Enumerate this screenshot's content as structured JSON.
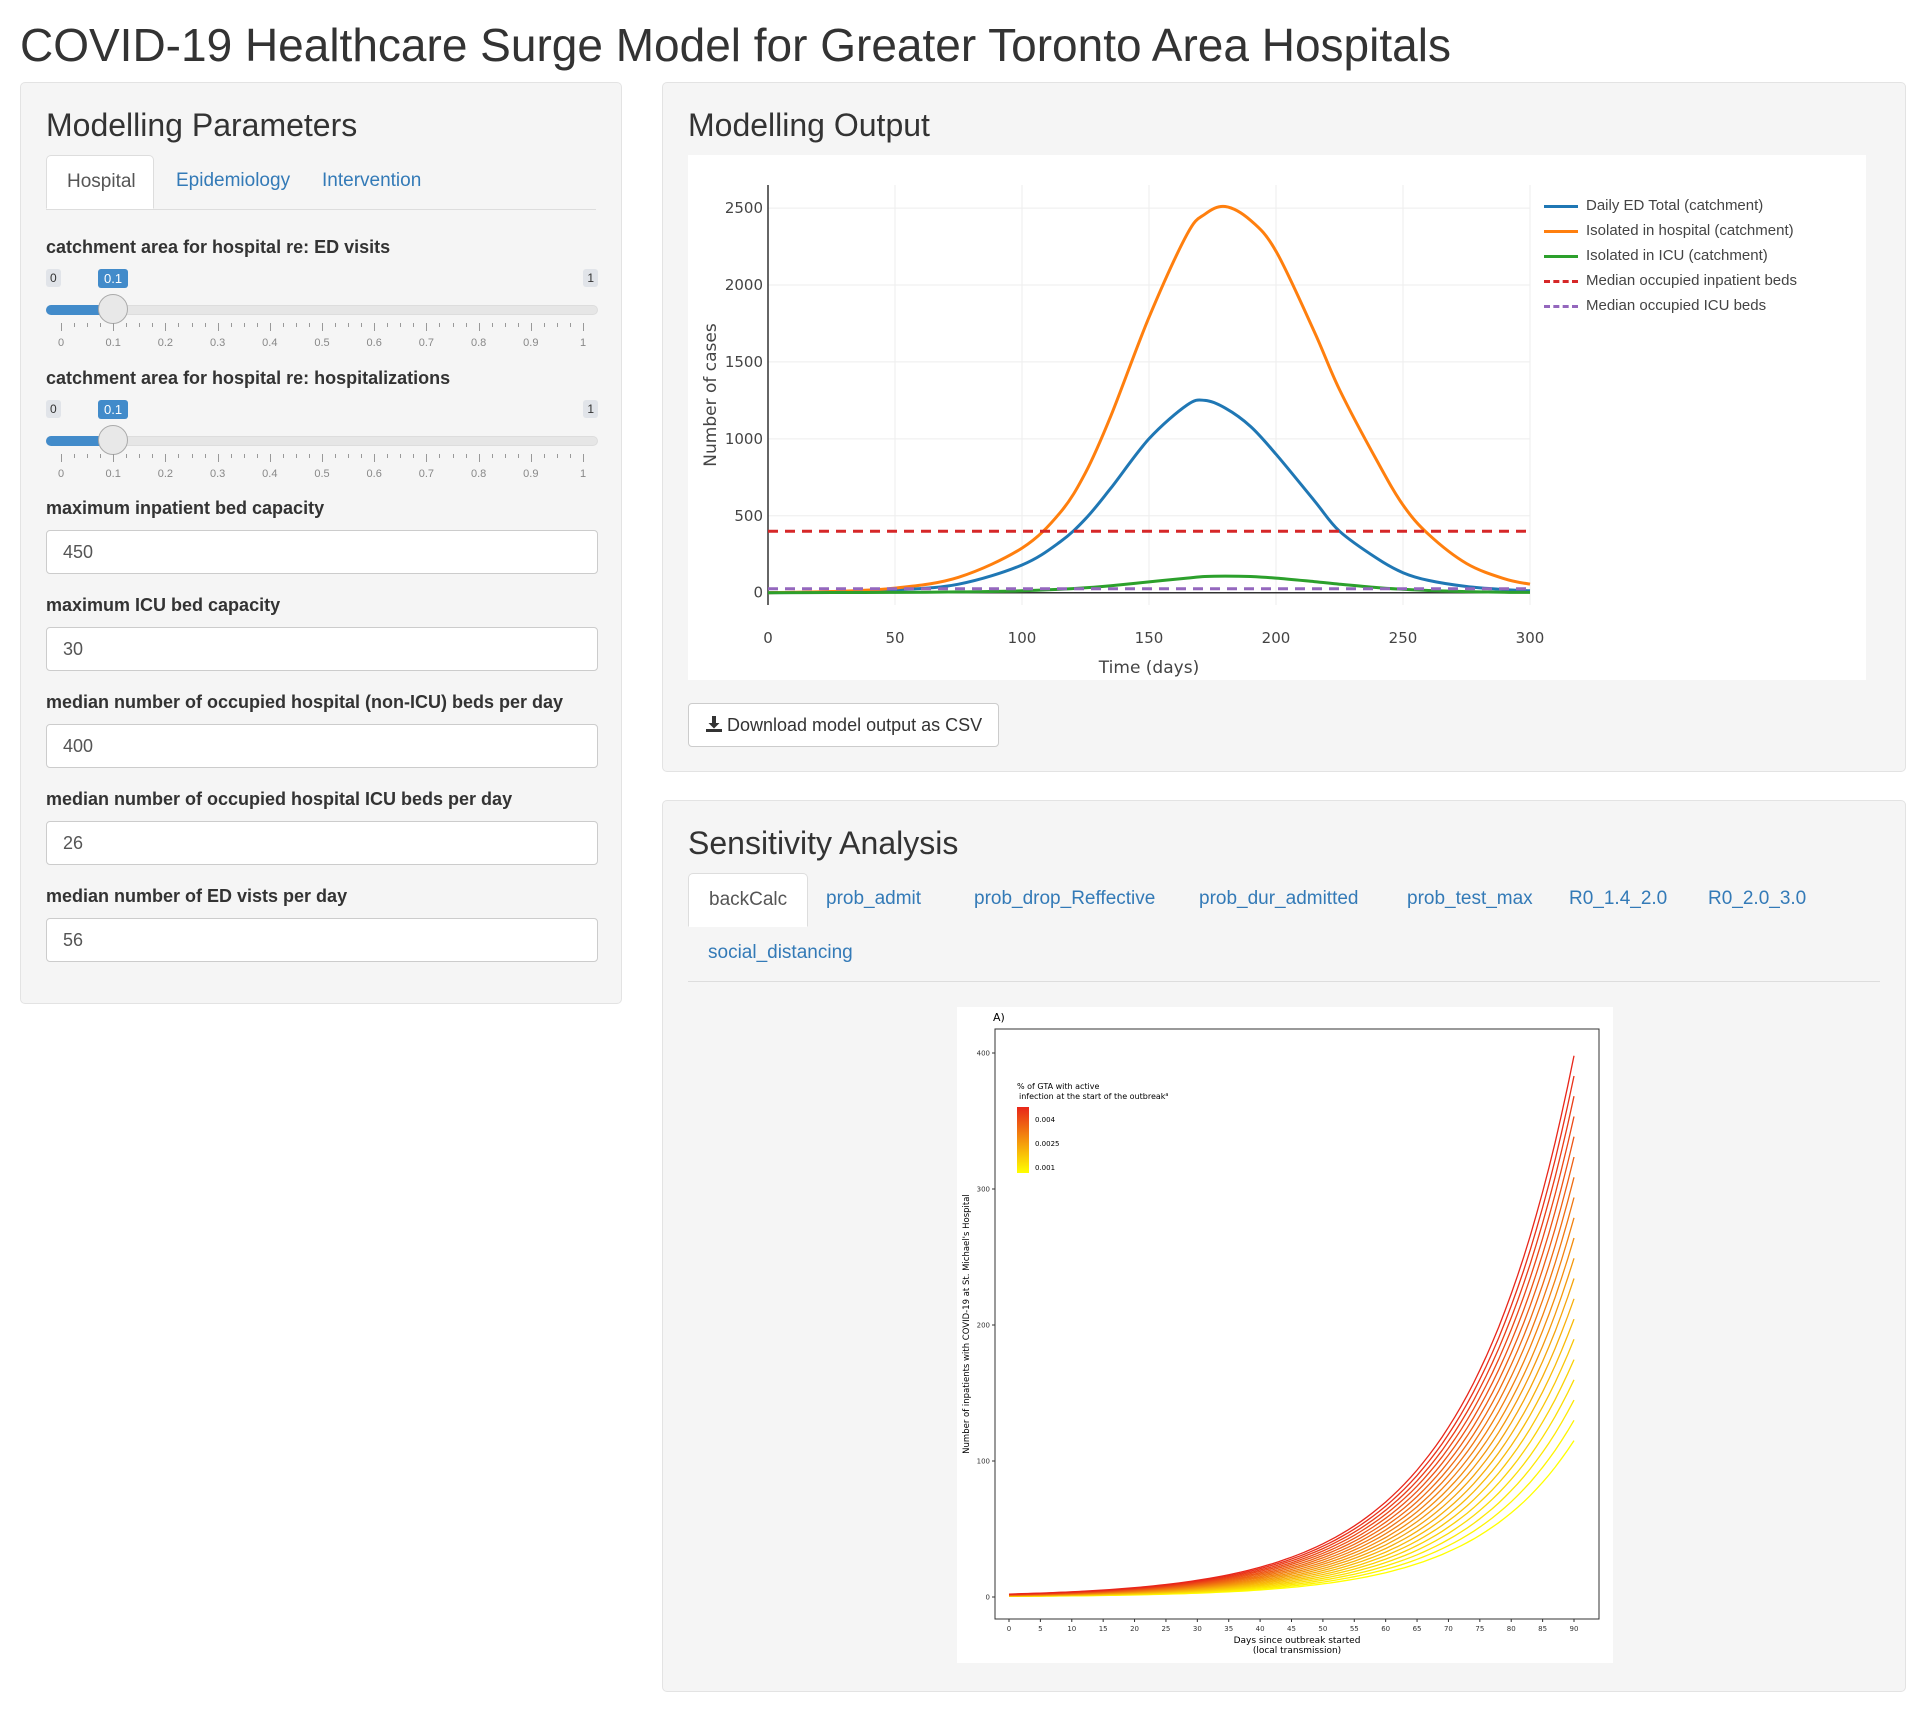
{
  "app_title": "COVID-19 Healthcare Surge Model for Greater Toronto Area Hospitals",
  "params": {
    "title": "Modelling Parameters",
    "tabs": [
      "Hospital",
      "Epidemiology",
      "Intervention"
    ],
    "active_tab": "Hospital",
    "sliders": [
      {
        "label": "catchment area for hospital re: ED visits",
        "min": "0",
        "max": "1",
        "value": "0.1",
        "ticks": [
          "0",
          "0.1",
          "0.2",
          "0.3",
          "0.4",
          "0.5",
          "0.6",
          "0.7",
          "0.8",
          "0.9",
          "1"
        ]
      },
      {
        "label": "catchment area for hospital re: hospitalizations",
        "min": "0",
        "max": "1",
        "value": "0.1",
        "ticks": [
          "0",
          "0.1",
          "0.2",
          "0.3",
          "0.4",
          "0.5",
          "0.6",
          "0.7",
          "0.8",
          "0.9",
          "1"
        ]
      }
    ],
    "inputs": [
      {
        "label": "maximum inpatient bed capacity",
        "value": "450"
      },
      {
        "label": "maximum ICU bed capacity",
        "value": "30"
      },
      {
        "label": "median number of occupied hospital (non-ICU) beds per day",
        "value": "400"
      },
      {
        "label": "median number of occupied hospital ICU beds per day",
        "value": "26"
      },
      {
        "label": "median number of ED vists per day",
        "value": "56"
      }
    ]
  },
  "output": {
    "title": "Modelling Output",
    "download_label": "Download model output as CSV",
    "download_icon": "download-icon"
  },
  "sensitivity": {
    "title": "Sensitivity Analysis",
    "tabs": [
      "backCalc",
      "prob_admit",
      "prob_drop_Reffective",
      "prob_dur_admitted",
      "prob_test_max",
      "R0_1.4_2.0",
      "R0_2.0_3.0",
      "social_distancing"
    ],
    "active_tab": "backCalc"
  },
  "chart_data": [
    {
      "type": "line",
      "xlabel": "Time (days)",
      "ylabel": "Number of cases",
      "xlim": [
        0,
        300
      ],
      "ylim": [
        -80,
        2650
      ],
      "xticks": [
        "0",
        "50",
        "100",
        "150",
        "200",
        "250",
        "300"
      ],
      "yticks": [
        "0",
        "500",
        "1000",
        "1500",
        "2000",
        "2500"
      ],
      "grid": true,
      "legend_position": "right",
      "x": [
        0,
        25,
        50,
        75,
        100,
        115,
        125,
        135,
        150,
        165,
        172,
        180,
        190,
        200,
        215,
        225,
        240,
        250,
        260,
        275,
        290,
        300
      ],
      "series": [
        {
          "name": "Daily ED Total (catchment)",
          "color": "#1f77b4",
          "dash": false,
          "values": [
            0,
            5,
            18,
            55,
            180,
            330,
            480,
            680,
            1000,
            1220,
            1250,
            1200,
            1080,
            900,
            600,
            400,
            220,
            130,
            80,
            40,
            20,
            12
          ]
        },
        {
          "name": "Isolated in hospital (catchment)",
          "color": "#ff7f0e",
          "dash": false,
          "values": [
            0,
            8,
            30,
            100,
            290,
            520,
            780,
            1150,
            1790,
            2330,
            2460,
            2510,
            2420,
            2220,
            1700,
            1320,
            850,
            570,
            380,
            190,
            90,
            55
          ]
        },
        {
          "name": "Isolated in ICU (catchment)",
          "color": "#2ca02c",
          "dash": false,
          "values": [
            0,
            1,
            2,
            5,
            12,
            22,
            32,
            45,
            70,
            95,
            105,
            108,
            105,
            95,
            72,
            55,
            33,
            22,
            14,
            7,
            3,
            2
          ]
        },
        {
          "name": "Median occupied inpatient beds",
          "color": "#d62728",
          "dash": true,
          "values": [
            400,
            400,
            400,
            400,
            400,
            400,
            400,
            400,
            400,
            400,
            400,
            400,
            400,
            400,
            400,
            400,
            400,
            400,
            400,
            400,
            400,
            400
          ]
        },
        {
          "name": "Median occupied ICU beds",
          "color": "#9467bd",
          "dash": true,
          "values": [
            26,
            26,
            26,
            26,
            26,
            26,
            26,
            26,
            26,
            26,
            26,
            26,
            26,
            26,
            26,
            26,
            26,
            26,
            26,
            26,
            26,
            26
          ]
        }
      ]
    },
    {
      "type": "line",
      "panel_label": "A)",
      "xlabel_line1": "Days since outbreak started",
      "xlabel_line2": "(local transmission)",
      "ylabel": "Number of inpatients with COVID-19 at St. Michael's Hospital",
      "xlim": [
        0,
        90
      ],
      "ylim": [
        0,
        400
      ],
      "xticks": [
        "0",
        "5",
        "10",
        "15",
        "20",
        "25",
        "30",
        "35",
        "40",
        "45",
        "50",
        "55",
        "60",
        "65",
        "70",
        "75",
        "80",
        "85",
        "90"
      ],
      "yticks": [
        "0",
        "100",
        "200",
        "300",
        "400"
      ],
      "legend_title_line1": "% of GTA with active",
      "legend_title_line2": "infection at the start of the outbreak",
      "legend_title_sup": "a",
      "legend_labels": [
        "0.004",
        "0.0025",
        "0.001"
      ],
      "color_low": "#ffff00",
      "color_high": "#e8261a",
      "n_curves": 20,
      "end_min": 115,
      "end_max": 398
    }
  ]
}
